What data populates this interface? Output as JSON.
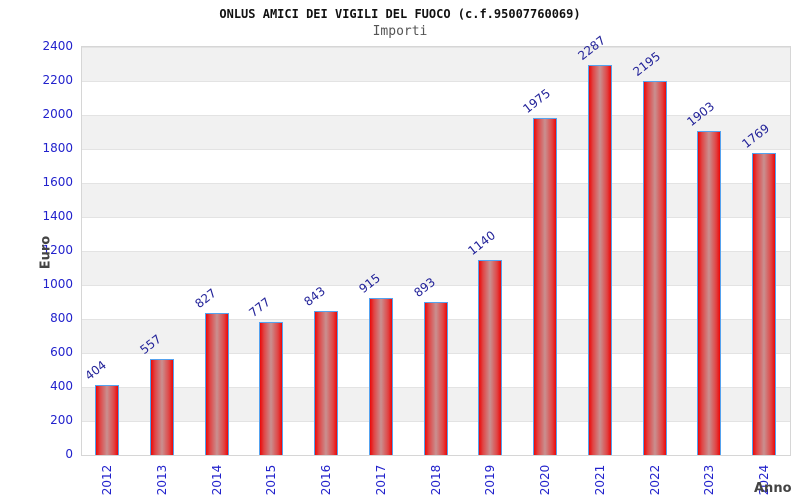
{
  "header": {
    "title": "ONLUS AMICI DEI VIGILI DEL FUOCO (c.f.95007760069)",
    "subtitle": "Importi"
  },
  "chart_data": {
    "type": "bar",
    "title": "ONLUS AMICI DEI VIGILI DEL FUOCO (c.f.95007760069)",
    "subtitle": "Importi",
    "categories": [
      "2012",
      "2013",
      "2014",
      "2015",
      "2016",
      "2017",
      "2018",
      "2019",
      "2020",
      "2021",
      "2022",
      "2023",
      "2024"
    ],
    "values": [
      404,
      557,
      827,
      777,
      843,
      915,
      893,
      1140,
      1975,
      2287,
      2195,
      1903,
      1769
    ],
    "xlabel": "Anno",
    "ylabel": "Euro",
    "ylim": [
      0,
      2400
    ],
    "ytick_step": 200,
    "grid": true,
    "legend_position": "none",
    "colors": {
      "bar_edge": "#ec0808",
      "bar_highlight": "#c99090",
      "bar_border": "#54a2ef",
      "tick_label": "#2222cc",
      "value_label": "#222299",
      "axis_title": "#444444",
      "band_gray": "#f1f1f1",
      "band_white": "#ffffff",
      "gridline": "#e3e3e3",
      "plot_border": "#d6d6d6",
      "title_color": "#111111",
      "subtitle_color": "#555555"
    }
  }
}
